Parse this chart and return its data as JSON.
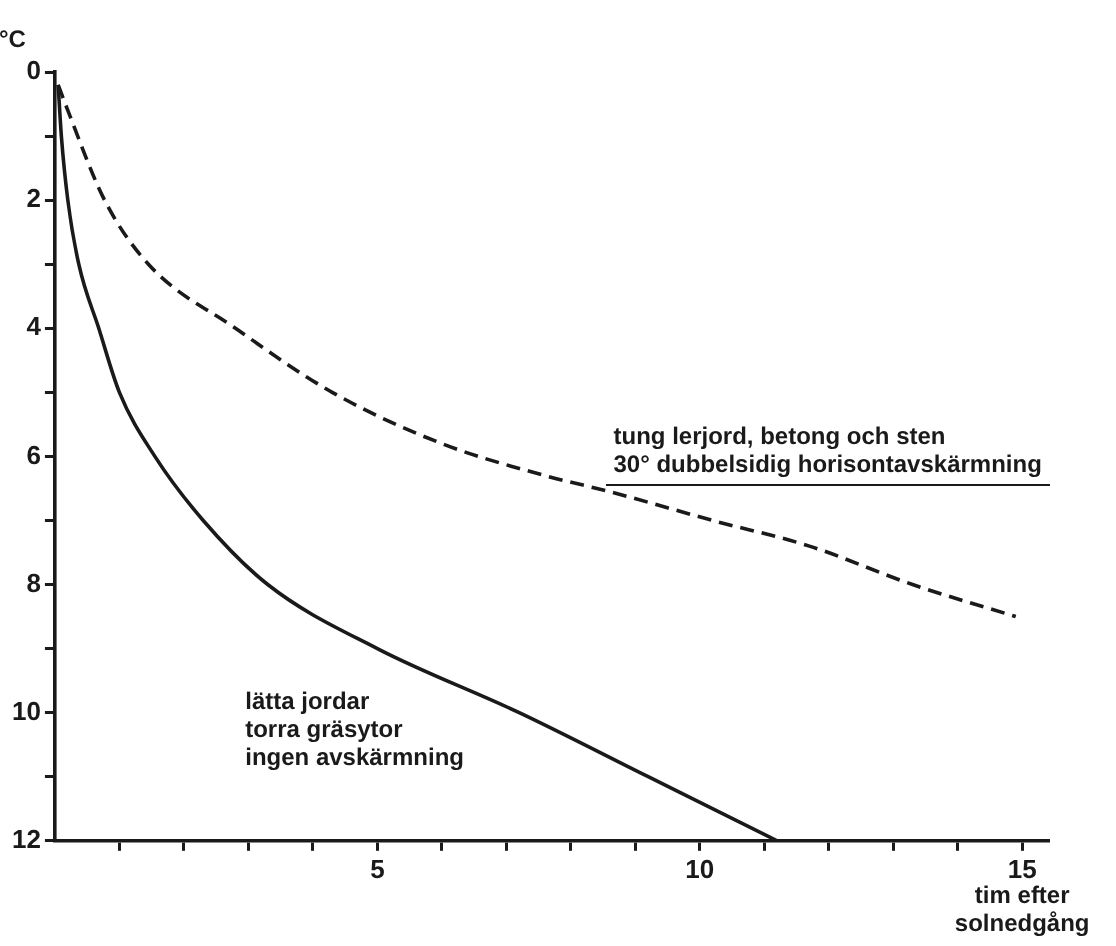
{
  "chart_data": {
    "type": "line",
    "ylabel": "°C",
    "xlabel": "tim efter\nsolnedgång",
    "xlim": [
      0,
      15.4
    ],
    "xticks": [
      {
        "value": 1,
        "label": null
      },
      {
        "value": 2,
        "label": null
      },
      {
        "value": 3,
        "label": null
      },
      {
        "value": 4,
        "label": null
      },
      5,
      {
        "value": 6,
        "label": null
      },
      {
        "value": 7,
        "label": null
      },
      {
        "value": 8,
        "label": null
      },
      {
        "value": 9,
        "label": null
      },
      10,
      {
        "value": 11,
        "label": null
      },
      {
        "value": 12,
        "label": null
      },
      {
        "value": 13,
        "label": null
      },
      {
        "value": 14,
        "label": null
      },
      15
    ],
    "ylim": [
      12,
      0
    ],
    "yticks": [
      0,
      {
        "value": 1,
        "label": null
      },
      2,
      {
        "value": 3,
        "label": null
      },
      4,
      {
        "value": 5,
        "label": null
      },
      6,
      {
        "value": 7,
        "label": null
      },
      8,
      {
        "value": 9,
        "label": null
      },
      10,
      {
        "value": 11,
        "label": null
      },
      12
    ],
    "grid": false,
    "legend": false,
    "marker": "none",
    "series": [
      {
        "name": "lätta jordar\ntorra gräsytor\ningen avskärmning",
        "color": "#1a1a1a",
        "line_style": "solid",
        "x": [
          0.05,
          0.1,
          0.2,
          0.37,
          0.68,
          1.0,
          1.55,
          2.3,
          3.3,
          5.0,
          7.2,
          9.2,
          11.2
        ],
        "values": [
          0.2,
          1,
          2,
          3,
          4,
          5,
          6,
          7,
          8,
          9,
          10,
          11,
          12
        ]
      },
      {
        "name": "tung lerjord, betong och sten\n30° dubbelsidig horisontavskärmning",
        "color": "#1a1a1a",
        "line_style": "dashed",
        "x": [
          0.05,
          0.2,
          0.77,
          1.45,
          2.8,
          4.3,
          6.0,
          7.6,
          8.6,
          10.2,
          11.7,
          13.3,
          14.9
        ],
        "values": [
          0.2,
          0.6,
          2,
          3,
          4,
          5,
          5.8,
          6.3,
          6.55,
          7.0,
          7.4,
          8.0,
          8.5
        ]
      }
    ]
  }
}
